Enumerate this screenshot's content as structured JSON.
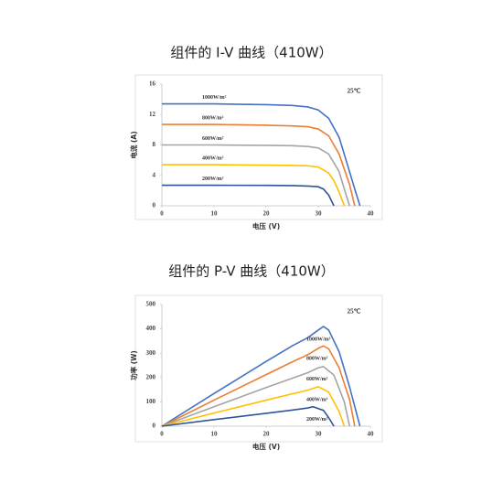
{
  "chart_data": [
    {
      "type": "line",
      "title": "组件的 I-V 曲线（410W）",
      "x_label": "电压 (V)",
      "y_label": "电流 (A)",
      "annotation": "25℃",
      "xlim": [
        0,
        40
      ],
      "xticks": [
        0,
        10,
        20,
        30,
        40
      ],
      "ylim": [
        0,
        16
      ],
      "yticks": [
        0,
        4,
        8,
        12,
        16
      ],
      "series": [
        {
          "name": "1000W/m²",
          "color": "#4472c4",
          "x": [
            0,
            10,
            20,
            25,
            28,
            30,
            32,
            34,
            36,
            37,
            38
          ],
          "values": [
            13.4,
            13.4,
            13.3,
            13.2,
            13.0,
            12.6,
            11.5,
            9.0,
            4.5,
            2.2,
            0
          ]
        },
        {
          "name": "800W/m²",
          "color": "#ed7d31",
          "x": [
            0,
            10,
            20,
            25,
            28,
            30,
            32,
            34,
            36,
            37
          ],
          "values": [
            10.7,
            10.7,
            10.6,
            10.5,
            10.4,
            10.1,
            9.2,
            6.8,
            2.8,
            0
          ]
        },
        {
          "name": "600W/m²",
          "color": "#a5a5a5",
          "x": [
            0,
            10,
            20,
            25,
            28,
            30,
            32,
            34,
            35,
            36
          ],
          "values": [
            8.0,
            8.0,
            7.95,
            7.9,
            7.8,
            7.6,
            6.8,
            4.5,
            2.2,
            0
          ]
        },
        {
          "name": "400W/m²",
          "color": "#ffc000",
          "x": [
            0,
            10,
            20,
            25,
            28,
            30,
            32,
            33,
            34,
            35
          ],
          "values": [
            5.4,
            5.4,
            5.35,
            5.3,
            5.25,
            5.1,
            4.3,
            3.3,
            1.8,
            0
          ]
        },
        {
          "name": "200W/m²",
          "color": "#2f5597",
          "x": [
            0,
            10,
            20,
            25,
            28,
            30,
            31,
            32,
            33
          ],
          "values": [
            2.7,
            2.7,
            2.68,
            2.65,
            2.6,
            2.5,
            2.2,
            1.4,
            0
          ]
        }
      ]
    },
    {
      "type": "line",
      "title": "组件的 P-V 曲线（410W）",
      "x_label": "电压 (V)",
      "y_label": "功率 (W)",
      "annotation": "25℃",
      "xlim": [
        0,
        40
      ],
      "xticks": [
        0,
        10,
        20,
        30,
        40
      ],
      "ylim": [
        0,
        500
      ],
      "yticks": [
        0,
        100,
        200,
        300,
        400,
        500
      ],
      "series": [
        {
          "name": "1000W/m²",
          "color": "#4472c4",
          "x": [
            0,
            10,
            20,
            25,
            28,
            30,
            31,
            32,
            34,
            36,
            38
          ],
          "values": [
            0,
            134,
            266,
            330,
            364,
            395,
            410,
            395,
            306,
            162,
            0
          ]
        },
        {
          "name": "800W/m²",
          "color": "#ed7d31",
          "x": [
            0,
            10,
            20,
            25,
            28,
            30,
            31,
            32,
            34,
            36,
            37
          ],
          "values": [
            0,
            107,
            212,
            264,
            294,
            320,
            330,
            318,
            240,
            110,
            0
          ]
        },
        {
          "name": "600W/m²",
          "color": "#a5a5a5",
          "x": [
            0,
            10,
            20,
            25,
            28,
            30,
            31,
            33,
            35,
            36
          ],
          "values": [
            0,
            80,
            159,
            197,
            220,
            240,
            245,
            210,
            100,
            0
          ]
        },
        {
          "name": "400W/m²",
          "color": "#ffc000",
          "x": [
            0,
            10,
            20,
            25,
            28,
            30,
            32,
            34,
            35
          ],
          "values": [
            0,
            54,
            107,
            133,
            148,
            162,
            140,
            60,
            0
          ]
        },
        {
          "name": "200W/m²",
          "color": "#2f5597",
          "x": [
            0,
            10,
            20,
            25,
            28,
            29,
            31,
            32,
            33
          ],
          "values": [
            0,
            27,
            53,
            66,
            75,
            80,
            65,
            35,
            0
          ]
        }
      ]
    }
  ]
}
